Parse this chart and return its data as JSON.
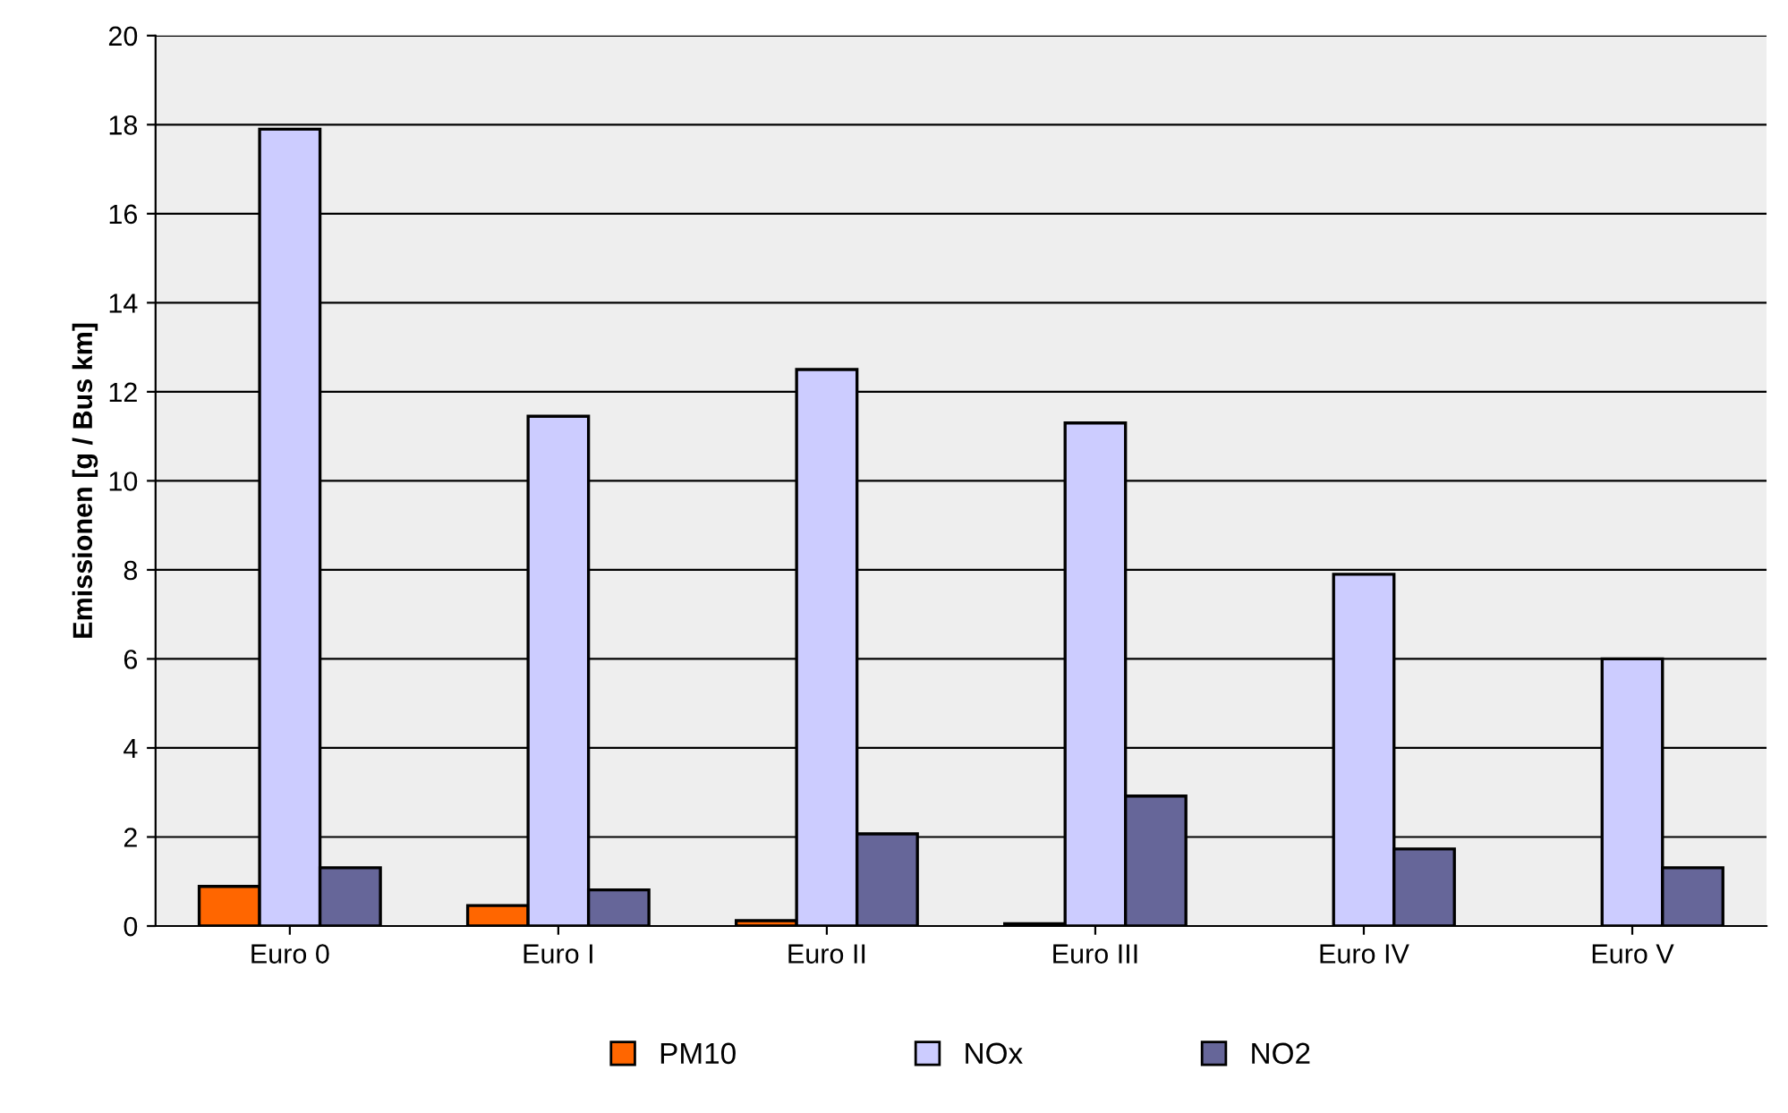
{
  "chart_data": {
    "type": "bar",
    "ylabel": "Emissionen [g / Bus km]",
    "categories": [
      "Euro 0",
      "Euro I",
      "Euro II",
      "Euro III",
      "Euro IV",
      "Euro V"
    ],
    "series": [
      {
        "name": "PM10",
        "color": "#ff6600",
        "values": [
          0.89,
          0.46,
          0.12,
          0.05,
          null,
          null
        ]
      },
      {
        "name": "NOx",
        "color": "#ccccff",
        "values": [
          17.9,
          11.45,
          12.5,
          11.3,
          7.9,
          6.0
        ]
      },
      {
        "name": "NO2",
        "color": "#666699",
        "values": [
          1.31,
          0.81,
          2.07,
          2.92,
          1.73,
          1.31
        ]
      }
    ],
    "ylim": [
      0,
      20
    ],
    "yticks": [
      0,
      2,
      4,
      6,
      8,
      10,
      12,
      14,
      16,
      18,
      20
    ],
    "grid": "y",
    "legend": "bottom"
  }
}
